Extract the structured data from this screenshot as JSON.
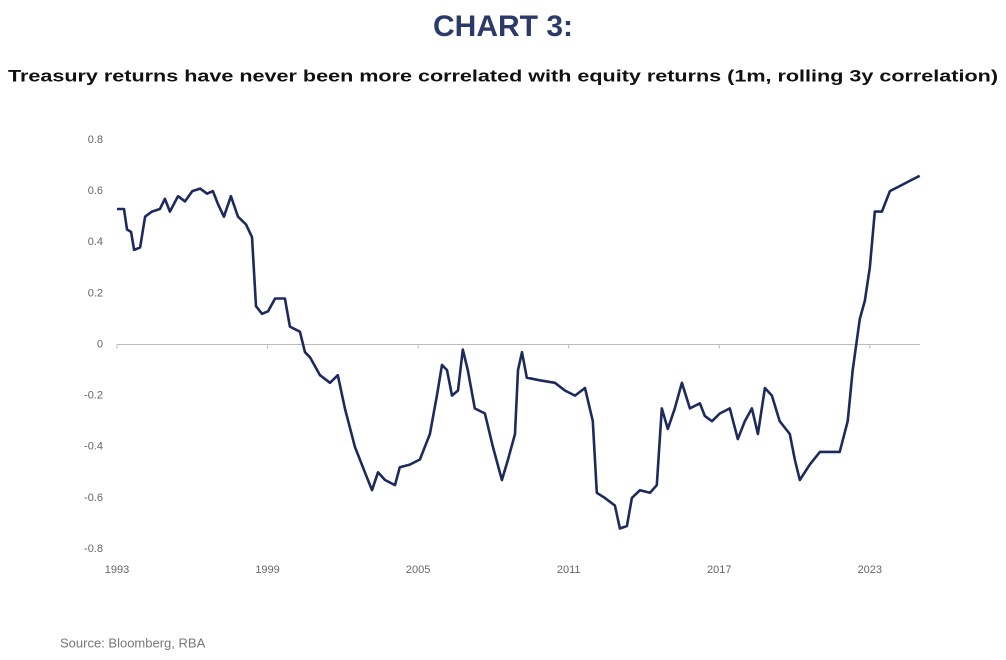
{
  "chart_data": {
    "type": "line",
    "title": "CHART 3:",
    "subtitle": "Treasury returns have never been more correlated with equity returns (1m, rolling 3y correlation)",
    "source": "Source: Bloomberg, RBA",
    "color": "#1f2a5c",
    "x": [
      1993.0,
      1993.28,
      1993.4,
      1993.56,
      1993.68,
      1993.92,
      1994.12,
      1994.39,
      1994.71,
      1994.91,
      1995.11,
      1995.43,
      1995.71,
      1996.0,
      1996.31,
      1996.59,
      1996.82,
      1997.02,
      1997.26,
      1997.54,
      1997.82,
      1998.14,
      1998.38,
      1998.54,
      1998.78,
      1999.02,
      1999.3,
      1999.69,
      1999.89,
      2000.29,
      2000.49,
      2000.69,
      2001.09,
      2001.49,
      2001.8,
      2002.08,
      2002.48,
      2002.88,
      2003.16,
      2003.4,
      2003.68,
      2004.08,
      2004.27,
      2004.67,
      2005.07,
      2005.47,
      2005.75,
      2005.95,
      2006.15,
      2006.35,
      2006.59,
      2006.78,
      2006.98,
      2007.26,
      2007.66,
      2007.98,
      2008.34,
      2008.58,
      2008.86,
      2008.98,
      2009.14,
      2009.33,
      2009.85,
      2010.45,
      2010.85,
      2011.25,
      2011.65,
      2011.84,
      2011.96,
      2012.12,
      2012.44,
      2012.84,
      2013.04,
      2013.32,
      2013.52,
      2013.84,
      2014.24,
      2014.51,
      2014.71,
      2014.95,
      2015.23,
      2015.51,
      2015.83,
      2016.23,
      2016.43,
      2016.71,
      2017.02,
      2017.42,
      2017.74,
      2018.02,
      2018.3,
      2018.54,
      2018.82,
      2019.1,
      2019.41,
      2019.81,
      2020.01,
      2020.21,
      2020.61,
      2021.01,
      2021.41,
      2021.8,
      2022.12,
      2022.32,
      2022.6,
      2022.8,
      2023.0,
      2023.2,
      2023.48,
      2023.8,
      2024.2,
      2024.59,
      2024.99
    ],
    "values": [
      0.53,
      0.53,
      0.45,
      0.44,
      0.37,
      0.38,
      0.5,
      0.52,
      0.53,
      0.57,
      0.52,
      0.58,
      0.56,
      0.6,
      0.61,
      0.59,
      0.6,
      0.55,
      0.5,
      0.58,
      0.5,
      0.47,
      0.42,
      0.15,
      0.12,
      0.13,
      0.18,
      0.18,
      0.07,
      0.05,
      -0.03,
      -0.05,
      -0.12,
      -0.15,
      -0.12,
      -0.25,
      -0.4,
      -0.5,
      -0.57,
      -0.5,
      -0.53,
      -0.55,
      -0.48,
      -0.47,
      -0.45,
      -0.35,
      -0.2,
      -0.08,
      -0.1,
      -0.2,
      -0.18,
      -0.02,
      -0.1,
      -0.25,
      -0.27,
      -0.4,
      -0.53,
      -0.45,
      -0.35,
      -0.1,
      -0.03,
      -0.13,
      -0.14,
      -0.15,
      -0.18,
      -0.2,
      -0.17,
      -0.25,
      -0.3,
      -0.58,
      -0.6,
      -0.63,
      -0.72,
      -0.71,
      -0.6,
      -0.57,
      -0.58,
      -0.55,
      -0.25,
      -0.33,
      -0.25,
      -0.15,
      -0.25,
      -0.23,
      -0.28,
      -0.3,
      -0.27,
      -0.25,
      -0.37,
      -0.3,
      -0.25,
      -0.35,
      -0.17,
      -0.2,
      -0.3,
      -0.35,
      -0.45,
      -0.53,
      -0.47,
      -0.42,
      -0.42,
      -0.42,
      -0.3,
      -0.1,
      0.1,
      0.17,
      0.3,
      0.52,
      0.52,
      0.6,
      0.62,
      0.64,
      0.66
    ],
    "xlim": [
      1993,
      2025
    ],
    "xticks": [
      1993,
      1999,
      2005,
      2011,
      2017,
      2023
    ],
    "ylim": [
      -0.8,
      0.8
    ],
    "yticks": [
      0.8,
      0.6,
      0.4,
      0.2,
      0,
      -0.2,
      -0.4,
      -0.6,
      -0.8
    ],
    "grid": false
  }
}
